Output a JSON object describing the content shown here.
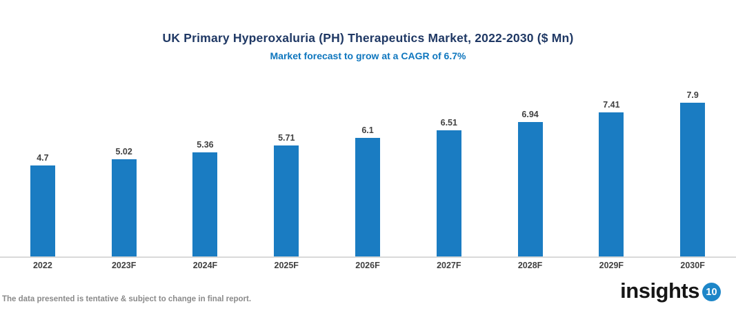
{
  "header": {
    "title": "UK Primary Hyperoxaluria (PH) Therapeutics Market, 2022-2030 ($ Mn)",
    "subtitle": "Market forecast to grow at a CAGR of 6.7%"
  },
  "chart_data": {
    "type": "bar",
    "title": "UK Primary Hyperoxaluria (PH) Therapeutics Market, 2022-2030 ($ Mn)",
    "subtitle": "Market forecast to grow at a CAGR of 6.7%",
    "categories": [
      "2022",
      "2023F",
      "2024F",
      "2025F",
      "2026F",
      "2027F",
      "2028F",
      "2029F",
      "2030F"
    ],
    "values": [
      4.7,
      5.02,
      5.36,
      5.71,
      6.1,
      6.51,
      6.94,
      7.41,
      7.9
    ],
    "xlabel": "",
    "ylabel": "",
    "ylim": [
      0,
      8.25
    ],
    "grid": false,
    "legend": "none",
    "value_labels_shown": true,
    "bar_color": "#1A7CC2"
  },
  "footer": {
    "disclaimer": "The data presented is tentative & subject to change in final report.",
    "logo_text": "insights",
    "logo_badge": "10"
  },
  "colors": {
    "title": "#1F3864",
    "subtitle": "#0E76BE",
    "bar": "#1A7CC2",
    "data_label": "#404040",
    "axis_line": "#D9D9D9",
    "disclaimer": "#8A8A8A",
    "logo_badge_bg": "#1D86C8"
  }
}
